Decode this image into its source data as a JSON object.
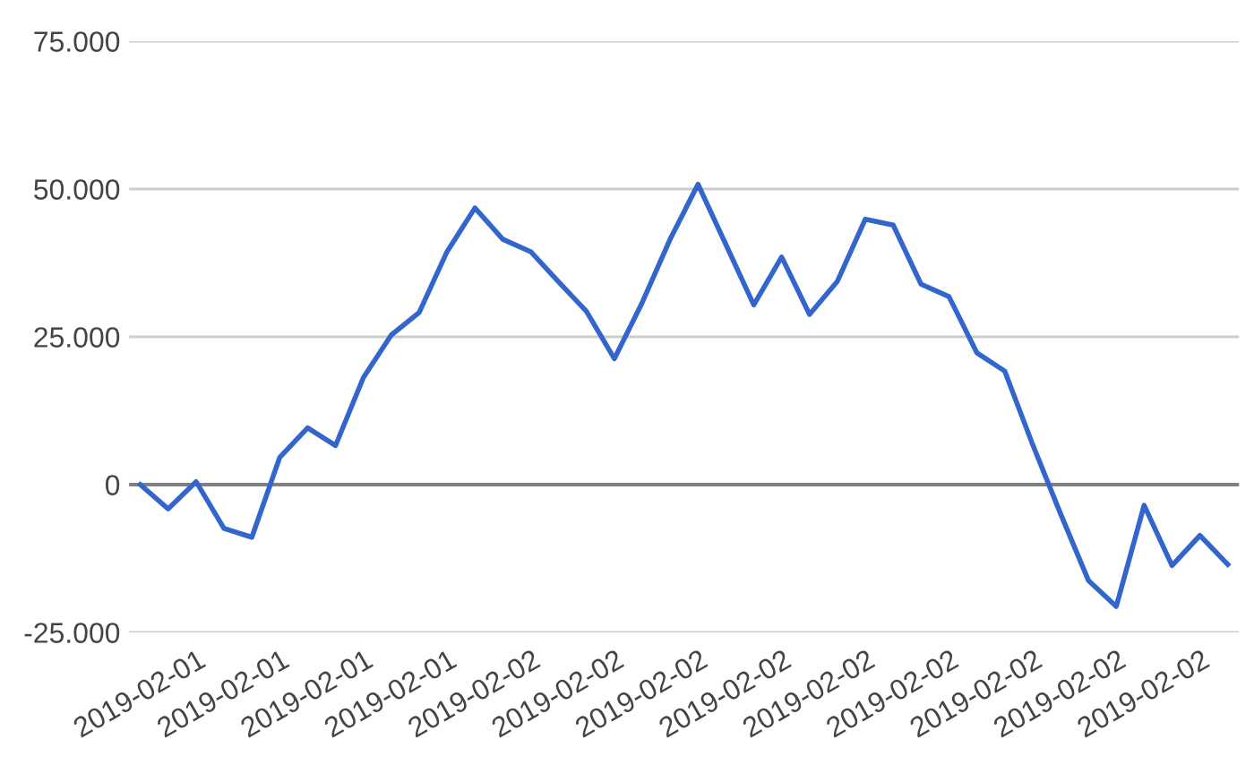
{
  "chart_data": {
    "type": "line",
    "categories": [
      "2019-02-01",
      null,
      null,
      "2019-02-01",
      null,
      null,
      "2019-02-01",
      null,
      null,
      "2019-02-01",
      null,
      null,
      "2019-02-02",
      null,
      null,
      "2019-02-02",
      null,
      null,
      "2019-02-02",
      null,
      null,
      "2019-02-02",
      null,
      null,
      "2019-02-02",
      null,
      null,
      "2019-02-02",
      null,
      null,
      "2019-02-02",
      null,
      null,
      "2019-02-02",
      null,
      null,
      "2019-02-02",
      null,
      null,
      null
    ],
    "series": [
      {
        "color": "#3366cc",
        "values": [
          0,
          -4100,
          500,
          -7400,
          -8900,
          4600,
          9600,
          6600,
          18100,
          25300,
          29100,
          39400,
          46800,
          41500,
          39400,
          34300,
          29300,
          21300,
          30800,
          41500,
          50800,
          40600,
          30400,
          38500,
          28800,
          34400,
          44900,
          43900,
          33900,
          31800,
          22300,
          19200,
          6800,
          -4900,
          -16200,
          -20600,
          -3500,
          -13700,
          -8600,
          -13500
        ]
      }
    ],
    "ylim": [
      -25000,
      75000
    ],
    "yticks": [
      {
        "value": -25000,
        "label": "-25.000"
      },
      0,
      {
        "value": 25000,
        "label": "25.000"
      },
      {
        "value": 50000,
        "label": "50.000"
      },
      {
        "value": 75000,
        "label": "75.000"
      }
    ],
    "grid": "y",
    "ref_lines": [
      {
        "axis": "y",
        "value": 0,
        "color": "#808080"
      }
    ],
    "legend": false,
    "marker": "none",
    "line_style": "solid"
  }
}
